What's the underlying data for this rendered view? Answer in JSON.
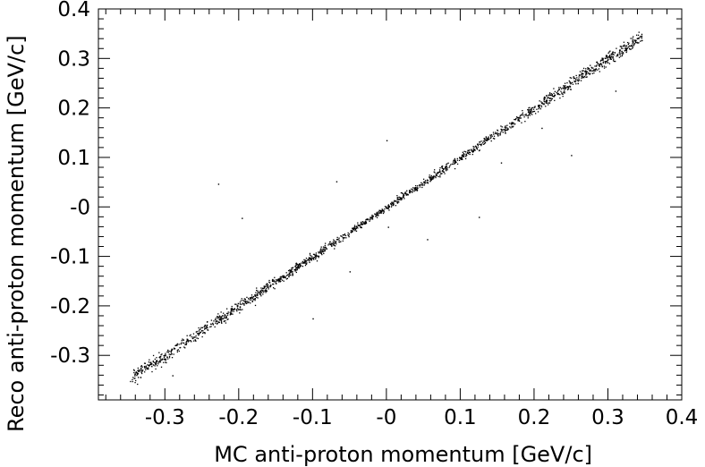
{
  "chart_data": {
    "type": "scatter",
    "title": "",
    "xlabel": "MC anti-proton momentum [GeV/c]",
    "ylabel": "Reco anti-proton momentum [GeV/c]",
    "xlim": [
      -0.39,
      0.4
    ],
    "ylim": [
      -0.39,
      0.4
    ],
    "x_ticks": [
      -0.3,
      -0.2,
      -0.1,
      0.0,
      0.1,
      0.2,
      0.3,
      0.4
    ],
    "x_tick_labels": [
      "-0.3",
      "-0.2",
      "-0.1",
      "-0",
      "0.1",
      "0.2",
      "0.3",
      "0.4"
    ],
    "y_ticks": [
      -0.3,
      -0.2,
      -0.1,
      0.0,
      0.1,
      0.2,
      0.3,
      0.4
    ],
    "y_tick_labels": [
      "-0.3",
      "-0.2",
      "-0.1",
      "-0",
      "0.1",
      "0.2",
      "0.3",
      "0.4"
    ],
    "grid": false,
    "legend": "none",
    "marker_color": "#000000",
    "series": [
      {
        "description_range": {
          "x": [
            -0.345,
            0.345
          ]
        },
        "trend": {
          "slope": 1.0,
          "intercept": 0.0
        },
        "band_points": [
          [
            -0.34,
            -0.336
          ],
          [
            -0.32,
            -0.318
          ],
          [
            -0.3,
            -0.301
          ],
          [
            -0.28,
            -0.279
          ],
          [
            -0.26,
            -0.262
          ],
          [
            -0.24,
            -0.238
          ],
          [
            -0.22,
            -0.221
          ],
          [
            -0.2,
            -0.199
          ],
          [
            -0.18,
            -0.181
          ],
          [
            -0.16,
            -0.158
          ],
          [
            -0.14,
            -0.142
          ],
          [
            -0.12,
            -0.119
          ],
          [
            -0.1,
            -0.101
          ],
          [
            -0.08,
            -0.079
          ],
          [
            -0.06,
            -0.061
          ],
          [
            -0.04,
            -0.039
          ],
          [
            -0.02,
            -0.021
          ],
          [
            0.0,
            0.0
          ],
          [
            0.02,
            0.021
          ],
          [
            0.04,
            0.039
          ],
          [
            0.06,
            0.061
          ],
          [
            0.08,
            0.079
          ],
          [
            0.1,
            0.101
          ],
          [
            0.12,
            0.119
          ],
          [
            0.14,
            0.142
          ],
          [
            0.16,
            0.158
          ],
          [
            0.18,
            0.181
          ],
          [
            0.2,
            0.199
          ],
          [
            0.22,
            0.221
          ],
          [
            0.24,
            0.238
          ],
          [
            0.26,
            0.262
          ],
          [
            0.28,
            0.279
          ],
          [
            0.3,
            0.301
          ],
          [
            0.32,
            0.318
          ],
          [
            0.34,
            0.338
          ]
        ],
        "outliers": [
          [
            -0.228,
            0.047
          ],
          [
            -0.196,
            -0.022
          ],
          [
            -0.068,
            0.052
          ],
          [
            0.0,
            0.135
          ],
          [
            0.002,
            -0.04
          ],
          [
            0.055,
            -0.065
          ],
          [
            0.125,
            -0.02
          ],
          [
            0.25,
            0.105
          ],
          [
            -0.05,
            -0.13
          ],
          [
            0.155,
            0.09
          ],
          [
            0.21,
            0.16
          ],
          [
            -0.1,
            -0.225
          ],
          [
            -0.29,
            -0.34
          ],
          [
            0.31,
            0.235
          ]
        ]
      }
    ]
  }
}
